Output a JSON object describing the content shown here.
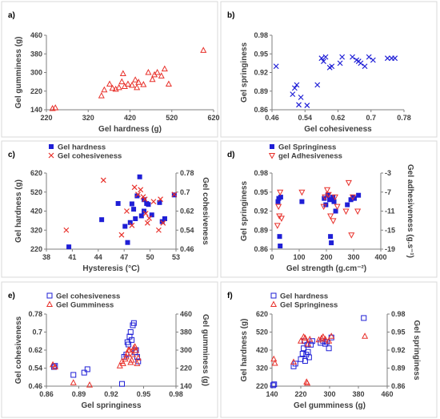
{
  "colors": {
    "blue": "#1f1fd6",
    "red": "#e8302a",
    "axis": "#7f7f7f",
    "text": "#404040",
    "border": "#d9d9d9"
  },
  "chart_data": [
    {
      "type": "scatter",
      "panel_label": "a)",
      "xlabel": "Gel hardness (g)",
      "ylabel": "Gel gumminess (g)",
      "xticks": [
        "220",
        "320",
        "420",
        "520",
        "620"
      ],
      "yticks": [
        "140",
        "220",
        "300",
        "380",
        "460"
      ],
      "xlim": [
        210,
        620
      ],
      "ylim": [
        140,
        460
      ],
      "legend_position": "none",
      "series": [
        {
          "marker": "triangle-open",
          "color": "#e8302a",
          "axis": "left",
          "points": [
            [
              225,
              145
            ],
            [
              232,
              148
            ],
            [
              345,
              200
            ],
            [
              352,
              225
            ],
            [
              365,
              250
            ],
            [
              372,
              232
            ],
            [
              380,
              228
            ],
            [
              388,
              235
            ],
            [
              395,
              260
            ],
            [
              398,
              295
            ],
            [
              402,
              240
            ],
            [
              410,
              250
            ],
            [
              420,
              245
            ],
            [
              428,
              268
            ],
            [
              432,
              235
            ],
            [
              436,
              258
            ],
            [
              448,
              248
            ],
            [
              460,
              300
            ],
            [
              470,
              270
            ],
            [
              475,
              290
            ],
            [
              482,
              300
            ],
            [
              492,
              285
            ],
            [
              500,
              315
            ],
            [
              510,
              250
            ],
            [
              595,
              395
            ]
          ]
        }
      ]
    },
    {
      "type": "scatter",
      "panel_label": "b)",
      "xlabel": "Gel cohesiveness",
      "ylabel": "Gel springiness",
      "xticks": [
        "0.46",
        "0.54",
        "0.62",
        "0.7",
        "0.78"
      ],
      "yticks": [
        "0.86",
        "0.89",
        "0.92",
        "0.95",
        "0.98"
      ],
      "xlim": [
        0.46,
        0.78
      ],
      "ylim": [
        0.86,
        0.98
      ],
      "legend_position": "none",
      "series": [
        {
          "marker": "x",
          "color": "#1f1fd6",
          "axis": "left",
          "points": [
            [
              0.47,
              0.93
            ],
            [
              0.51,
              0.885
            ],
            [
              0.515,
              0.895
            ],
            [
              0.52,
              0.9
            ],
            [
              0.525,
              0.868
            ],
            [
              0.53,
              0.88
            ],
            [
              0.545,
              0.867
            ],
            [
              0.57,
              0.9
            ],
            [
              0.58,
              0.943
            ],
            [
              0.585,
              0.938
            ],
            [
              0.59,
              0.945
            ],
            [
              0.6,
              0.928
            ],
            [
              0.605,
              0.93
            ],
            [
              0.625,
              0.935
            ],
            [
              0.63,
              0.945
            ],
            [
              0.655,
              0.945
            ],
            [
              0.665,
              0.94
            ],
            [
              0.67,
              0.938
            ],
            [
              0.675,
              0.935
            ],
            [
              0.685,
              0.93
            ],
            [
              0.695,
              0.945
            ],
            [
              0.705,
              0.94
            ],
            [
              0.74,
              0.943
            ],
            [
              0.75,
              0.943
            ],
            [
              0.758,
              0.943
            ]
          ]
        }
      ]
    },
    {
      "type": "scatter",
      "panel_label": "c)",
      "xlabel": "Hysteresis (°C)",
      "ylabel": "Gel hardness (g)",
      "ylabel2": "Gel cohesiveness",
      "xticks": [
        "38",
        "41",
        "44",
        "47",
        "50",
        "53"
      ],
      "yticks": [
        "220",
        "320",
        "420",
        "520",
        "620"
      ],
      "yticks2": [
        "0.46",
        "0.54",
        "0.62",
        "0.7",
        "0.78"
      ],
      "xlim": [
        38,
        53
      ],
      "ylim": [
        220,
        620
      ],
      "ylim2": [
        0.46,
        0.78
      ],
      "legend_position": "top-left",
      "series": [
        {
          "name": "Gel hardness",
          "marker": "square-filled",
          "color": "#1f1fd6",
          "axis": "left",
          "points": [
            [
              40.6,
              232
            ],
            [
              44.4,
              375
            ],
            [
              46.3,
              460
            ],
            [
              47.1,
              340
            ],
            [
              47.4,
              255
            ],
            [
              47.7,
              360
            ],
            [
              47.9,
              458
            ],
            [
              48.1,
              430
            ],
            [
              48.3,
              380
            ],
            [
              48.5,
              500
            ],
            [
              48.8,
              600
            ],
            [
              49.0,
              395
            ],
            [
              49.3,
              420
            ],
            [
              49.3,
              480
            ],
            [
              49.6,
              460
            ],
            [
              49.8,
              455
            ],
            [
              50.2,
              400
            ],
            [
              51.1,
              465
            ],
            [
              51.4,
              365
            ],
            [
              51.7,
              380
            ],
            [
              52.8,
              505
            ]
          ]
        },
        {
          "name": "Gel cohesiveness",
          "marker": "x",
          "color": "#e8302a",
          "axis": "right",
          "points": [
            [
              40.3,
              0.54
            ],
            [
              44.6,
              0.75
            ],
            [
              46.7,
              0.52
            ],
            [
              47.3,
              0.62
            ],
            [
              47.9,
              0.56
            ],
            [
              48.2,
              0.72
            ],
            [
              48.6,
              0.69
            ],
            [
              48.9,
              0.71
            ],
            [
              49.2,
              0.68
            ],
            [
              49.4,
              0.67
            ],
            [
              49.5,
              0.61
            ],
            [
              49.7,
              0.57
            ],
            [
              49.9,
              0.59
            ],
            [
              50.4,
              0.66
            ],
            [
              51.0,
              0.54
            ],
            [
              51.2,
              0.67
            ],
            [
              51.5,
              0.57
            ],
            [
              52.8,
              0.69
            ]
          ]
        }
      ]
    },
    {
      "type": "scatter",
      "panel_label": "d)",
      "xlabel": "Gel strength (g.cm⁻²)",
      "ylabel": "Gel springiness",
      "ylabel2": "Gel adhesiveness (g.s⁻¹)",
      "xticks": [
        "0",
        "100",
        "200",
        "300",
        "400"
      ],
      "yticks": [
        "0.86",
        "0.89",
        "0.92",
        "0.95",
        "0.98"
      ],
      "yticks2": [
        "-19",
        "-15",
        "-11",
        "-7",
        "-3"
      ],
      "xlim": [
        0,
        400
      ],
      "ylim": [
        0.86,
        0.98
      ],
      "ylim2": [
        -19,
        -3
      ],
      "legend_position": "top-left",
      "series": [
        {
          "name": "Gel Springiness",
          "marker": "square-filled",
          "color": "#1f1fd6",
          "axis": "left",
          "points": [
            [
              22,
              0.935
            ],
            [
              25,
              0.94
            ],
            [
              28,
              0.88
            ],
            [
              30,
              0.865
            ],
            [
              32,
              0.942
            ],
            [
              110,
              0.935
            ],
            [
              192,
              0.94
            ],
            [
              198,
              0.93
            ],
            [
              205,
              0.945
            ],
            [
              212,
              0.938
            ],
            [
              215,
              0.88
            ],
            [
              218,
              0.87
            ],
            [
              224,
              0.942
            ],
            [
              228,
              0.935
            ],
            [
              234,
              0.92
            ],
            [
              277,
              0.93
            ],
            [
              290,
              0.938
            ],
            [
              298,
              0.942
            ],
            [
              303,
              0.94
            ],
            [
              318,
              0.945
            ]
          ]
        },
        {
          "name": "gel Adhesiveness",
          "marker": "inv-triangle-open",
          "color": "#e8302a",
          "axis": "right",
          "points": [
            [
              20,
              -14.0
            ],
            [
              24,
              -10.0
            ],
            [
              27,
              -12.0
            ],
            [
              30,
              -7.0
            ],
            [
              35,
              -12.5
            ],
            [
              110,
              -7.0
            ],
            [
              190,
              -10.0
            ],
            [
              195,
              -8.0
            ],
            [
              203,
              -6.5
            ],
            [
              208,
              -7.5
            ],
            [
              215,
              -12.0
            ],
            [
              225,
              -13.0
            ],
            [
              232,
              -8.0
            ],
            [
              240,
              -10.0
            ],
            [
              272,
              -11.0
            ],
            [
              282,
              -5.0
            ],
            [
              292,
              -16.0
            ],
            [
              297,
              -8.0
            ],
            [
              315,
              -11.0
            ]
          ]
        }
      ]
    },
    {
      "type": "scatter",
      "panel_label": "e)",
      "xlabel": "Gel springiness",
      "ylabel": "Gel cohesiveness",
      "ylabel2": "Gel gumminess (g)",
      "xticks": [
        "0.86",
        "0.89",
        "0.92",
        "0.95",
        "0.98"
      ],
      "yticks": [
        "0.46",
        "0.54",
        "0.62",
        "0.7",
        "0.78"
      ],
      "yticks2": [
        "140",
        "220",
        "300",
        "380",
        "460"
      ],
      "xlim": [
        0.86,
        0.98
      ],
      "ylim": [
        0.46,
        0.78
      ],
      "ylim2": [
        140,
        460
      ],
      "legend_position": "top-left",
      "series": [
        {
          "name": "Gel cohesiveness",
          "marker": "square-open",
          "color": "#1f1fd6",
          "axis": "left",
          "points": [
            [
              0.867,
              0.545
            ],
            [
              0.868,
              0.55
            ],
            [
              0.885,
              0.51
            ],
            [
              0.895,
              0.52
            ],
            [
              0.898,
              0.535
            ],
            [
              0.93,
              0.47
            ],
            [
              0.932,
              0.59
            ],
            [
              0.934,
              0.6
            ],
            [
              0.935,
              0.655
            ],
            [
              0.936,
              0.645
            ],
            [
              0.937,
              0.68
            ],
            [
              0.938,
              0.7
            ],
            [
              0.939,
              0.665
            ],
            [
              0.94,
              0.73
            ],
            [
              0.941,
              0.74
            ],
            [
              0.942,
              0.61
            ],
            [
              0.943,
              0.62
            ],
            [
              0.944,
              0.59
            ],
            [
              0.945,
              0.57
            ]
          ]
        },
        {
          "name": "Gel Gumminess",
          "marker": "triangle-open",
          "color": "#e8302a",
          "axis": "right",
          "points": [
            [
              0.866,
              235
            ],
            [
              0.868,
              225
            ],
            [
              0.885,
              155
            ],
            [
              0.9,
              145
            ],
            [
              0.928,
              230
            ],
            [
              0.93,
              250
            ],
            [
              0.931,
              240
            ],
            [
              0.933,
              260
            ],
            [
              0.934,
              270
            ],
            [
              0.935,
              285
            ],
            [
              0.936,
              300
            ],
            [
              0.937,
              300
            ],
            [
              0.938,
              245
            ],
            [
              0.939,
              255
            ],
            [
              0.94,
              280
            ],
            [
              0.941,
              310
            ],
            [
              0.942,
              315
            ],
            [
              0.943,
              298
            ],
            [
              0.944,
              240
            ],
            [
              0.945,
              265
            ]
          ]
        }
      ]
    },
    {
      "type": "scatter",
      "panel_label": "f)",
      "xlabel": "Gel gumminess (g)",
      "ylabel": "Gel hardness (g)",
      "ylabel2": "Gel springiness",
      "xticks": [
        "140",
        "220",
        "300",
        "380",
        "460"
      ],
      "yticks": [
        "220",
        "320",
        "420",
        "520",
        "620"
      ],
      "yticks2": [
        "0.86",
        "0.89",
        "0.92",
        "0.95",
        "0.98"
      ],
      "xlim": [
        140,
        460
      ],
      "ylim": [
        220,
        620
      ],
      "ylim2": [
        0.86,
        0.98
      ],
      "legend_position": "top-left",
      "series": [
        {
          "name": "Gel hardness",
          "marker": "square-open",
          "color": "#1f1fd6",
          "axis": "left",
          "points": [
            [
              143,
              225
            ],
            [
              146,
              230
            ],
            [
              200,
              330
            ],
            [
              205,
              345
            ],
            [
              220,
              370
            ],
            [
              225,
              400
            ],
            [
              228,
              430
            ],
            [
              230,
              470
            ],
            [
              232,
              360
            ],
            [
              235,
              395
            ],
            [
              238,
              450
            ],
            [
              240,
              410
            ],
            [
              243,
              380
            ],
            [
              248,
              450
            ],
            [
              252,
              470
            ],
            [
              275,
              460
            ],
            [
              282,
              470
            ],
            [
              288,
              455
            ],
            [
              292,
              465
            ],
            [
              298,
              430
            ],
            [
              305,
              490
            ],
            [
              395,
              598
            ]
          ]
        },
        {
          "name": "Gel Springiness",
          "marker": "triangle-open",
          "color": "#e8302a",
          "axis": "right",
          "points": [
            [
              145,
              0.905
            ],
            [
              148,
              0.898
            ],
            [
              200,
              0.9
            ],
            [
              220,
              0.935
            ],
            [
              228,
              0.942
            ],
            [
              232,
              0.94
            ],
            [
              236,
              0.867
            ],
            [
              238,
              0.865
            ],
            [
              240,
              0.93
            ],
            [
              245,
              0.938
            ],
            [
              270,
              0.937
            ],
            [
              278,
              0.94
            ],
            [
              282,
              0.942
            ],
            [
              288,
              0.938
            ],
            [
              298,
              0.935
            ],
            [
              305,
              0.943
            ],
            [
              398,
              0.943
            ]
          ]
        }
      ]
    }
  ]
}
